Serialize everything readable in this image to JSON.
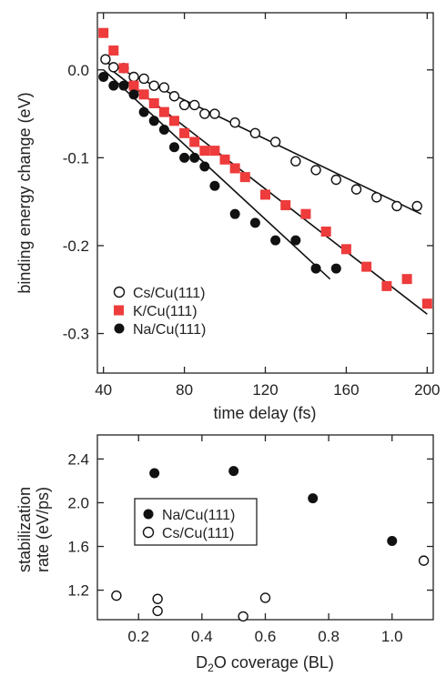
{
  "colors": {
    "k": "#ee3b3b",
    "black": "#111111",
    "open_fill": "#ffffff"
  },
  "chart_data": [
    {
      "type": "scatter",
      "xlabel": "time delay (fs)",
      "ylabel": "binding energy change (eV)",
      "xlim": [
        37,
        203
      ],
      "ylim": [
        -0.345,
        0.065
      ],
      "x_ticks": [
        {
          "value": 40,
          "label": "40"
        },
        {
          "value": 80,
          "label": "80"
        },
        {
          "value": 120,
          "label": "120"
        },
        {
          "value": 160,
          "label": "160"
        },
        {
          "value": 200,
          "label": "200"
        }
      ],
      "y_ticks": [
        {
          "value": 0,
          "label": "0.0"
        },
        {
          "value": -0.1,
          "label": "-0.1"
        },
        {
          "value": -0.2,
          "label": "-0.2"
        },
        {
          "value": -0.3,
          "label": "-0.3"
        }
      ],
      "legend_position": "bottom-left",
      "series": [
        {
          "name": "Cs/Cu(111)",
          "marker": "open-circle",
          "x": [
            41,
            45,
            50,
            55,
            60,
            65,
            70,
            75,
            80,
            85,
            90,
            95,
            105,
            115,
            125,
            135,
            145,
            155,
            165,
            175,
            185,
            195
          ],
          "y": [
            0.012,
            0.003,
            0.002,
            -0.008,
            -0.01,
            -0.018,
            -0.02,
            -0.03,
            -0.04,
            -0.04,
            -0.05,
            -0.05,
            -0.06,
            -0.072,
            -0.082,
            -0.104,
            -0.114,
            -0.125,
            -0.136,
            -0.145,
            -0.155,
            -0.155
          ],
          "fit": [
            [
              40,
              0.01
            ],
            [
              197,
              -0.164
            ]
          ]
        },
        {
          "name": "K/Cu(111)",
          "marker": "square",
          "color": "#ee3b3b",
          "x": [
            40,
            45,
            50,
            55,
            60,
            65,
            70,
            75,
            80,
            85,
            90,
            95,
            100,
            105,
            110,
            120,
            130,
            140,
            150,
            160,
            170,
            180,
            190,
            200
          ],
          "y": [
            0.042,
            0.022,
            0.002,
            -0.018,
            -0.028,
            -0.038,
            -0.048,
            -0.058,
            -0.072,
            -0.082,
            -0.092,
            -0.092,
            -0.102,
            -0.112,
            -0.122,
            -0.142,
            -0.154,
            -0.164,
            -0.184,
            -0.204,
            -0.224,
            -0.246,
            -0.238,
            -0.266
          ],
          "fit": [
            [
              45,
              -0.002
            ],
            [
              200,
              -0.278
            ]
          ]
        },
        {
          "name": "Na/Cu(111)",
          "marker": "filled-circle",
          "x": [
            40,
            45,
            50,
            55,
            60,
            65,
            70,
            75,
            80,
            85,
            90,
            95,
            105,
            115,
            125,
            135,
            145,
            155
          ],
          "y": [
            -0.008,
            -0.018,
            -0.018,
            -0.028,
            -0.048,
            -0.058,
            -0.068,
            -0.088,
            -0.1,
            -0.1,
            -0.11,
            -0.132,
            -0.164,
            -0.174,
            -0.194,
            -0.194,
            -0.226,
            -0.226
          ],
          "fit": [
            [
              40,
              0.0
            ],
            [
              152,
              -0.238
            ]
          ]
        }
      ]
    },
    {
      "type": "scatter",
      "xlabel": "D₂O coverage (BL)",
      "ylabel_line1": "stabilization",
      "ylabel_line2": "rate (eV/ps)",
      "xlim": [
        0.07,
        1.13
      ],
      "ylim": [
        0.93,
        2.62
      ],
      "x_ticks": [
        {
          "value": 0.2,
          "label": "0.2"
        },
        {
          "value": 0.4,
          "label": "0.4"
        },
        {
          "value": 0.6,
          "label": "0.6"
        },
        {
          "value": 0.8,
          "label": "0.8"
        },
        {
          "value": 1.0,
          "label": "1.0"
        }
      ],
      "y_ticks": [
        {
          "value": 1.2,
          "label": "1.2"
        },
        {
          "value": 1.6,
          "label": "1.6"
        },
        {
          "value": 2.0,
          "label": "2.0"
        },
        {
          "value": 2.4,
          "label": "2.4"
        }
      ],
      "legend_position": "left",
      "series": [
        {
          "name": "Na/Cu(111)",
          "marker": "filled-circle",
          "x": [
            0.25,
            0.5,
            0.75,
            1.0
          ],
          "y": [
            2.27,
            2.29,
            2.04,
            1.65
          ]
        },
        {
          "name": "Cs/Cu(111)",
          "marker": "open-circle",
          "x": [
            0.13,
            0.26,
            0.26,
            0.53,
            0.6,
            1.1
          ],
          "y": [
            1.15,
            1.12,
            1.01,
            0.96,
            1.13,
            1.47
          ]
        }
      ]
    }
  ]
}
